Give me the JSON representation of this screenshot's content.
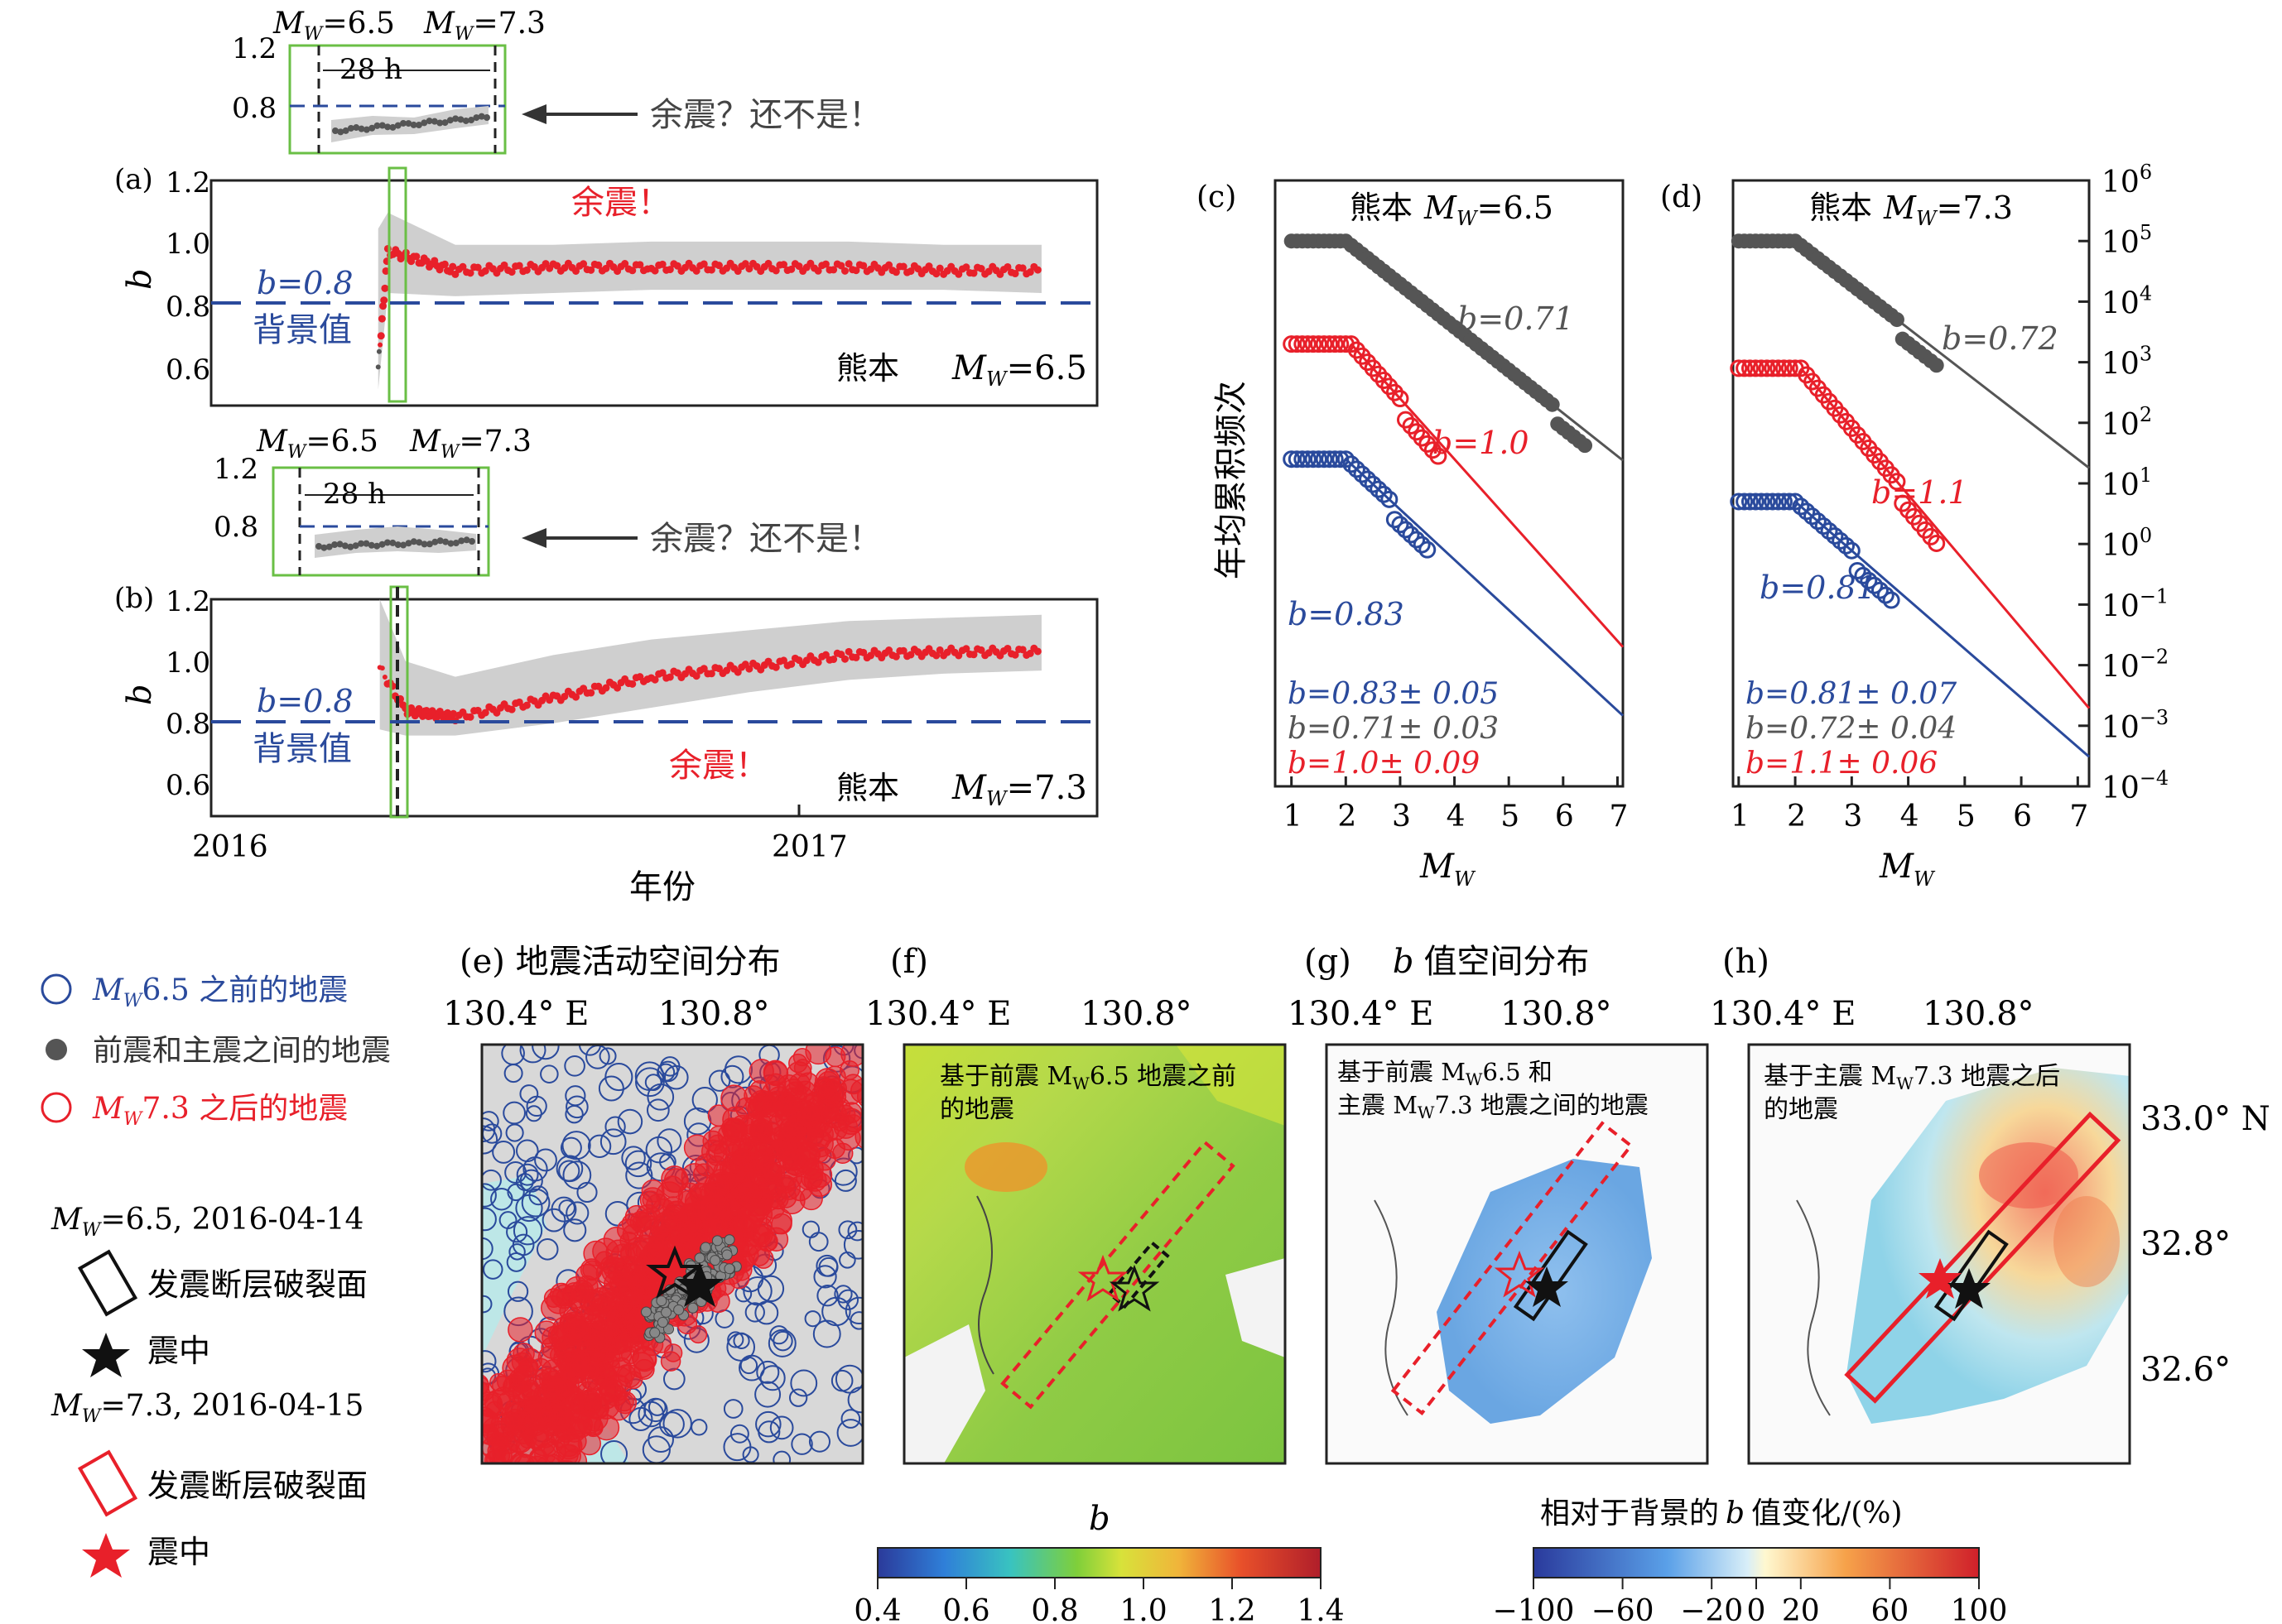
{
  "colors": {
    "blue": "#2a4a9c",
    "red": "#e8202a",
    "gray": "#555555",
    "band": "#cfcfcf",
    "green_box": "#6abf45",
    "dash_blue": "#2a4a9c"
  },
  "panel_a": {
    "letter": "(a)",
    "inset_top": {
      "mw1": "M",
      "mw1_sub": "W",
      "mw1_val": "=6.5",
      "mw2": "M",
      "mw2_sub": "W",
      "mw2_val": "=7.3",
      "window": "28 h",
      "yticks": [
        "1.2",
        "0.8"
      ]
    },
    "annotation": "余震？还不是！",
    "ylabel": "b",
    "yticks": [
      "1.2",
      "1.0",
      "0.8",
      "0.6"
    ],
    "bg_label": "b=0.8",
    "bg_text": "背景值",
    "aftershock": "余震！",
    "site": "熊本",
    "mw_label": "M",
    "mw_sub": "W",
    "mw_val": "=6.5"
  },
  "panel_b": {
    "letter": "(b)",
    "inset_top": {
      "mw1": "M",
      "mw1_sub": "W",
      "mw1_val": "=6.5",
      "mw2": "M",
      "mw2_sub": "W",
      "mw2_val": "=7.3",
      "window": "28 h",
      "yticks": [
        "1.2",
        "0.8"
      ]
    },
    "annotation": "余震？还不是！",
    "ylabel": "b",
    "yticks": [
      "1.2",
      "1.0",
      "0.8",
      "0.6"
    ],
    "bg_label": "b=0.8",
    "bg_text": "背景值",
    "aftershock": "余震！",
    "site": "熊本",
    "mw_label": "M",
    "mw_sub": "W",
    "mw_val": "=7.3",
    "xticks": [
      "2016",
      "2017"
    ],
    "xlabel": "年份"
  },
  "panel_c": {
    "letter": "(c)",
    "title": "熊本",
    "mw": "M",
    "mw_sub": "W",
    "mw_val": "=6.5",
    "ylabel": "年均累积频次",
    "xlabel": "M",
    "xlabel_sub": "W",
    "xticks": [
      "1",
      "2",
      "3",
      "4",
      "5",
      "6",
      "7"
    ],
    "b_gray": "b=0.71",
    "b_red": "b=1.0",
    "b_blue": "b=0.83",
    "sum_blue": "b=0.83± 0.05",
    "sum_gray": "b=0.71± 0.03",
    "sum_red": "b=1.0± 0.09"
  },
  "panel_d": {
    "letter": "(d)",
    "title": "熊本",
    "mw": "M",
    "mw_sub": "W",
    "mw_val": "=7.3",
    "xlabel": "M",
    "xlabel_sub": "W",
    "xticks": [
      "1",
      "2",
      "3",
      "4",
      "5",
      "6",
      "7"
    ],
    "yticks": [
      "10^6",
      "10^5",
      "10^4",
      "10^3",
      "10^2",
      "10^1",
      "10^0",
      "10^-1",
      "10^-2",
      "10^-3",
      "10^-4"
    ],
    "b_gray": "b=0.72",
    "b_red": "b=1.1",
    "b_blue": "b=0.81",
    "sum_blue": "b=0.81± 0.07",
    "sum_gray": "b=0.72± 0.04",
    "sum_red": "b=1.1± 0.06"
  },
  "maps": {
    "e_title": "(e)  地震活动空间分布",
    "f_letter": "(f)",
    "g_title": "(g)",
    "g_title_text": "值空间分布",
    "g_title_b": "b",
    "h_letter": "(h)",
    "lon1": "130.4° E",
    "lon2": "130.8°",
    "lat": [
      "33.0° N",
      "32.8°",
      "32.6°"
    ],
    "f_caption1": "基于前震 M",
    "f_caption1_sub": "W",
    "f_caption1_rest": "6.5 地震之前",
    "f_caption2": "的地震",
    "g_caption1": "基于前震 M",
    "g_caption1_sub": "W",
    "g_caption1_rest": "6.5 和",
    "g_caption2": "主震 M",
    "g_caption2_sub": "W",
    "g_caption2_rest": "7.3 地震之间的地震",
    "h_caption1": "基于主震 M",
    "h_caption1_sub": "W",
    "h_caption1_rest": "7.3 地震之后",
    "h_caption2": "的地震"
  },
  "legend": {
    "l1": "M",
    "l1_sub": "W",
    "l1_rest": "6.5 之前的地震",
    "l2": "前震和主震之间的地震",
    "l3": "M",
    "l3_sub": "W",
    "l3_rest": "7.3 之后的地震",
    "h1": "M",
    "h1_sub": "W",
    "h1_rest": "=6.5, 2016-04-14",
    "rupture": "发震断层破裂面",
    "epicenter": "震中",
    "h2": "M",
    "h2_sub": "W",
    "h2_rest": "=7.3, 2016-04-15"
  },
  "colorbar_b": {
    "label": "b",
    "ticks": [
      "0.4",
      "0.6",
      "0.8",
      "1.0",
      "1.2",
      "1.4"
    ]
  },
  "colorbar_pct": {
    "label_pre": "相对于背景的",
    "label_b": "b",
    "label_post": "值变化/(%)",
    "ticks": [
      "−100",
      "−60",
      "−20",
      "0",
      "20",
      "60",
      "100"
    ]
  },
  "chart_data": [
    {
      "type": "scatter",
      "title": "熊本 MW=6.5",
      "ylabel": "b",
      "ylim": [
        0.5,
        1.2
      ],
      "background_b": 0.8,
      "x_dates": [
        "2016-04-14",
        "2016-04-20",
        "2016-06-01",
        "2016-08-01",
        "2016-10-01",
        "2016-12-01",
        "2017-02-01",
        "2017-04-01",
        "2017-06-01"
      ],
      "b_values": [
        0.62,
        0.98,
        0.92,
        0.93,
        0.93,
        0.93,
        0.93,
        0.92,
        0.92
      ],
      "band_low": [
        0.55,
        0.85,
        0.84,
        0.85,
        0.86,
        0.86,
        0.86,
        0.86,
        0.85
      ],
      "band_high": [
        1.05,
        1.1,
        1.0,
        1.0,
        1.01,
        1.01,
        1.01,
        1.0,
        1.0
      ]
    },
    {
      "type": "scatter",
      "title": "熊本 MW=7.3",
      "ylabel": "b",
      "xlabel": "年份",
      "ylim": [
        0.5,
        1.2
      ],
      "background_b": 0.8,
      "x_dates": [
        "2016-04-15",
        "2016-05-01",
        "2016-06-01",
        "2016-08-01",
        "2016-10-01",
        "2016-12-01",
        "2017-02-01",
        "2017-04-01",
        "2017-06-01"
      ],
      "b_values": [
        0.98,
        0.84,
        0.82,
        0.88,
        0.95,
        0.98,
        1.02,
        1.03,
        1.03
      ],
      "band_low": [
        0.78,
        0.76,
        0.76,
        0.8,
        0.85,
        0.9,
        0.94,
        0.96,
        0.97
      ],
      "band_high": [
        1.2,
        1.0,
        0.95,
        1.02,
        1.07,
        1.1,
        1.13,
        1.14,
        1.15
      ]
    },
    {
      "type": "scatter",
      "title": "熊本 MW=6.5",
      "xlabel": "MW",
      "ylabel": "年均累积频次",
      "xlim": [
        0.7,
        7.1
      ],
      "ylim_log10": [
        -4,
        6
      ],
      "series": [
        {
          "name": "b=0.71",
          "b": 0.71,
          "log10_a_at_M1": 5.0,
          "mmax": 6.4
        },
        {
          "name": "b=1.0",
          "b": 1.0,
          "log10_a_at_M1": 3.3,
          "mmax": 3.7
        },
        {
          "name": "b=0.83",
          "b": 0.83,
          "log10_a_at_M1": 1.4,
          "mmax": 3.5
        }
      ]
    },
    {
      "type": "scatter",
      "title": "熊本 MW=7.3",
      "xlabel": "MW",
      "xlim": [
        0.9,
        7.2
      ],
      "ylim_log10": [
        -4,
        6
      ],
      "series": [
        {
          "name": "b=0.72",
          "b": 0.72,
          "log10_a_at_M1": 5.0,
          "mmax": 4.5
        },
        {
          "name": "b=1.1",
          "b": 1.1,
          "log10_a_at_M1": 2.9,
          "mmax": 4.5
        },
        {
          "name": "b=0.81",
          "b": 0.81,
          "log10_a_at_M1": 0.7,
          "mmax": 3.7
        }
      ]
    }
  ]
}
